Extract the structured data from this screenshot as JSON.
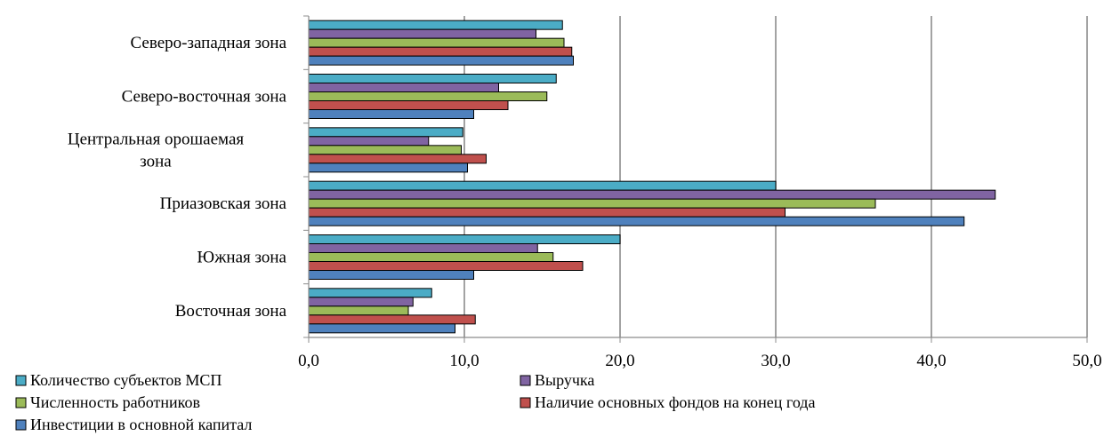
{
  "chart_data": {
    "type": "bar",
    "orientation": "horizontal",
    "categories": [
      "Северо-западная зона",
      "Северо-восточная зона",
      "Центральная орошаемая зона",
      "Приазовская зона",
      "Южная зона",
      "Восточная зона"
    ],
    "category_lines": [
      [
        "Северо-западная зона"
      ],
      [
        "Северо-восточная зона"
      ],
      [
        "Центральная орошаемая",
        "зона"
      ],
      [
        "Приазовская зона"
      ],
      [
        "Южная зона"
      ],
      [
        "Восточная зона"
      ]
    ],
    "series": [
      {
        "name": "Количество субъектов МСП",
        "color": "#4BACC6",
        "values": [
          16.3,
          15.9,
          9.9,
          30.0,
          20.0,
          7.9
        ]
      },
      {
        "name": "Выручка",
        "color": "#8064A2",
        "values": [
          14.6,
          12.2,
          7.7,
          44.1,
          14.7,
          6.7
        ]
      },
      {
        "name": "Численность работников",
        "color": "#9BBB59",
        "values": [
          16.4,
          15.3,
          9.8,
          36.4,
          15.7,
          6.4
        ]
      },
      {
        "name": "Наличие основных фондов на конец года",
        "color": "#C0504D",
        "values": [
          16.9,
          12.8,
          11.4,
          30.6,
          17.6,
          10.7
        ]
      },
      {
        "name": "Инвестиции в основной капитал",
        "color": "#4F81BD",
        "values": [
          17.0,
          10.6,
          10.2,
          42.1,
          10.6,
          9.4
        ]
      }
    ],
    "xlim": [
      0,
      50
    ],
    "xticks": [
      "0,0",
      "10,0",
      "20,0",
      "30,0",
      "40,0",
      "50,0"
    ],
    "xgrid": true,
    "legend_position": "bottom",
    "title": "",
    "xlabel": "",
    "ylabel": ""
  }
}
